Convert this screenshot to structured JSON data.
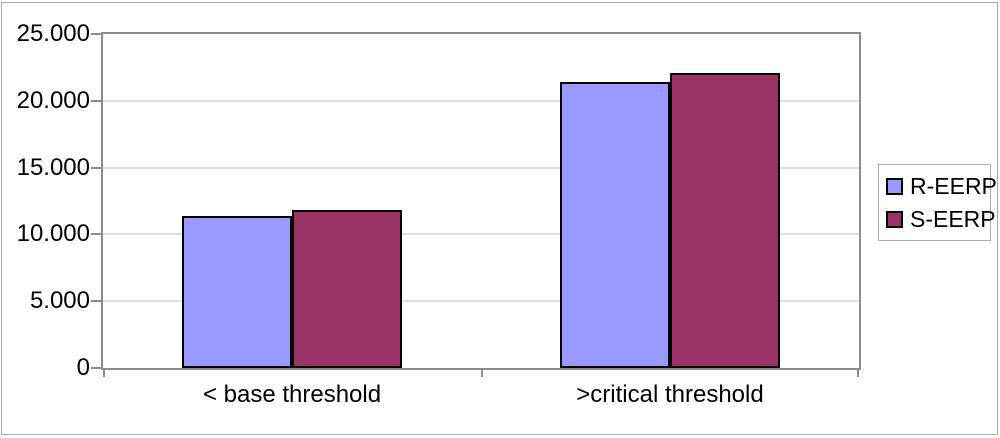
{
  "chart_data": {
    "type": "bar",
    "title": "",
    "xlabel": "",
    "ylabel": "",
    "categories": [
      "< base threshold",
      ">critical threshold"
    ],
    "series": [
      {
        "name": "R-EERP",
        "color": "#9999FF",
        "values": [
          11400,
          21400
        ]
      },
      {
        "name": "S-EERP",
        "color": "#993366",
        "values": [
          11800,
          22100
        ]
      }
    ],
    "ylim": [
      0,
      25000
    ],
    "ytick_interval": 5000,
    "ytick_labels": [
      "0",
      "5.000",
      "10.000",
      "15.000",
      "20.000",
      "25.000"
    ],
    "grid": true,
    "legend_position": "right"
  },
  "colors": {
    "plot_border": "#8c8c8c",
    "gridline": "#dedede",
    "bar_border": "#000000",
    "legend_border": "#ababab",
    "outer_border": "#ababab",
    "background": "#ffffff",
    "text": "#000000"
  }
}
